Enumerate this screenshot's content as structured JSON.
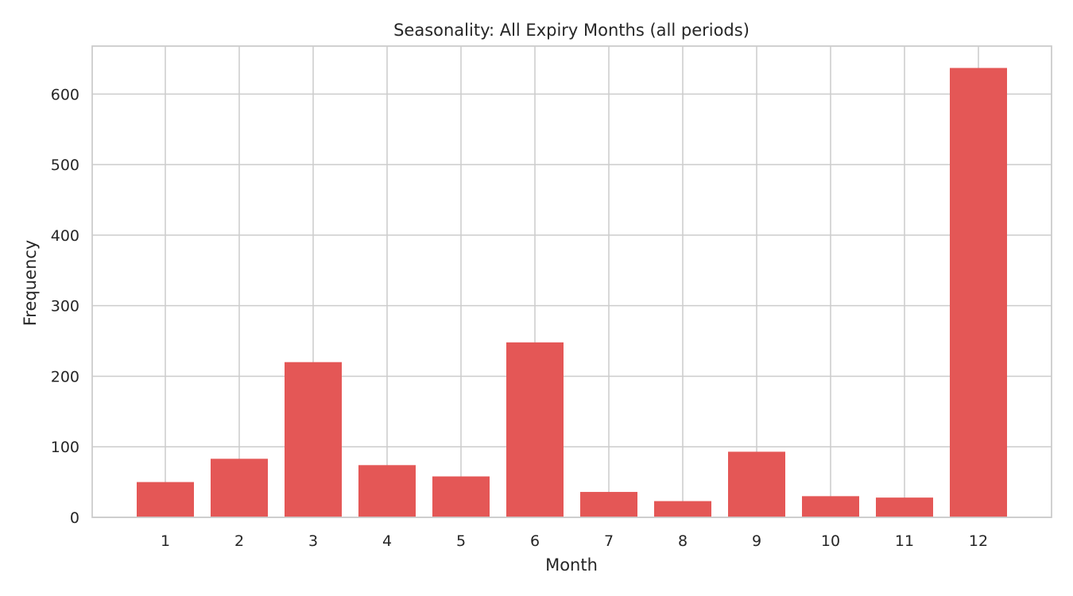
{
  "chart_data": {
    "type": "bar",
    "title": "Seasonality: All Expiry Months (all periods)",
    "xlabel": "Month",
    "ylabel": "Frequency",
    "categories": [
      "1",
      "2",
      "3",
      "4",
      "5",
      "6",
      "7",
      "8",
      "9",
      "10",
      "11",
      "12"
    ],
    "values": [
      50,
      83,
      220,
      74,
      58,
      248,
      36,
      23,
      93,
      30,
      28,
      637
    ],
    "yticks": [
      0,
      100,
      200,
      300,
      400,
      500,
      600
    ],
    "ylim": [
      0,
      668
    ],
    "grid": true,
    "bar_color": "#e45756"
  }
}
